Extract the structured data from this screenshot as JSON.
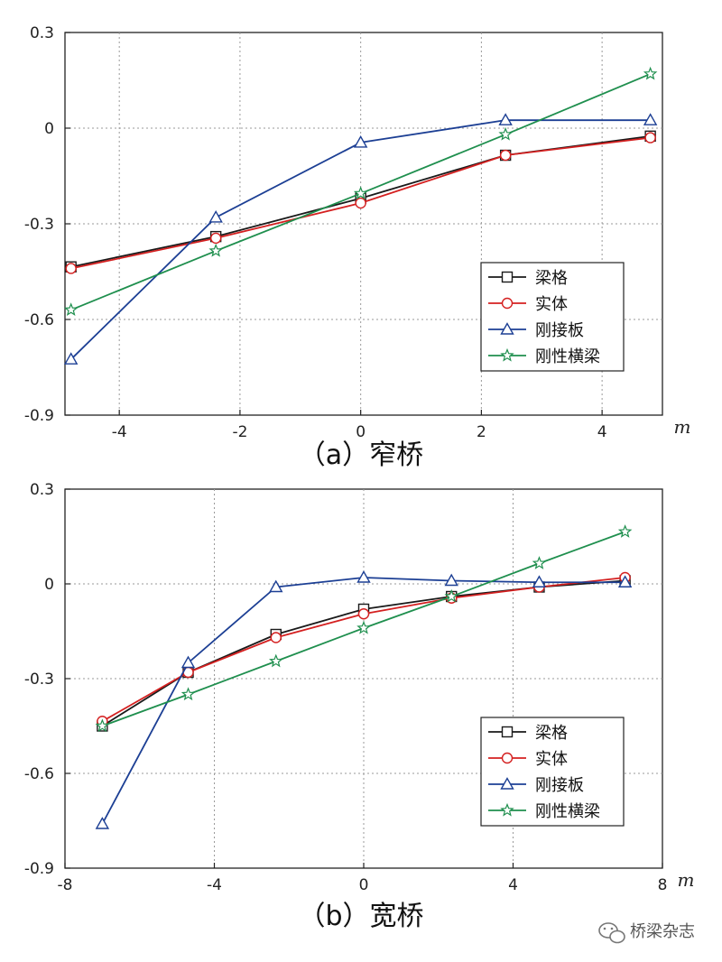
{
  "chart_data": [
    {
      "type": "line",
      "title": "（a）窄桥",
      "xlabel": "m",
      "ylabel": "",
      "xlim": [
        -4.9,
        5.0
      ],
      "ylim": [
        -0.9,
        0.3
      ],
      "xticks": [
        -4,
        -2,
        0,
        2,
        4
      ],
      "yticks": [
        0.3,
        0,
        -0.3,
        -0.6,
        -0.9
      ],
      "xtick_labels": [
        "-4",
        "-2",
        "0",
        "2",
        "4"
      ],
      "ytick_labels": [
        "0.3",
        "0",
        "-0.3",
        "-0.6",
        "-0.9"
      ],
      "grid": true,
      "legend_position": "lower-right",
      "series": [
        {
          "name": "梁格",
          "color": "#1a1a1a",
          "marker": "square",
          "x": [
            -4.8,
            -2.4,
            0,
            2.4,
            4.8
          ],
          "y": [
            -0.435,
            -0.34,
            -0.22,
            -0.085,
            -0.025
          ]
        },
        {
          "name": "实体",
          "color": "#d42020",
          "marker": "circle",
          "x": [
            -4.8,
            -2.4,
            0,
            2.4,
            4.8
          ],
          "y": [
            -0.44,
            -0.345,
            -0.235,
            -0.085,
            -0.03
          ]
        },
        {
          "name": "刚接板",
          "color": "#1c3f94",
          "marker": "triangle",
          "x": [
            -4.8,
            -2.4,
            0,
            2.4,
            4.8
          ],
          "y": [
            -0.725,
            -0.28,
            -0.045,
            0.025,
            0.025
          ]
        },
        {
          "name": "刚性横梁",
          "color": "#1f8f4e",
          "marker": "star",
          "x": [
            -4.8,
            -2.4,
            0,
            2.4,
            4.8
          ],
          "y": [
            -0.57,
            -0.385,
            -0.205,
            -0.02,
            0.17
          ]
        }
      ]
    },
    {
      "type": "line",
      "title": "（b）宽桥",
      "xlabel": "m",
      "ylabel": "",
      "xlim": [
        -8,
        8
      ],
      "ylim": [
        -0.9,
        0.3
      ],
      "xticks": [
        -8,
        -4,
        0,
        4,
        8
      ],
      "yticks": [
        0.3,
        0,
        -0.3,
        -0.6,
        -0.9
      ],
      "xtick_labels": [
        "-8",
        "-4",
        "0",
        "4",
        "8"
      ],
      "ytick_labels": [
        "0.3",
        "0",
        "-0.3",
        "-0.6",
        "-0.9"
      ],
      "grid": true,
      "legend_position": "lower-right",
      "series": [
        {
          "name": "梁格",
          "color": "#1a1a1a",
          "marker": "square",
          "x": [
            -7,
            -4.7,
            -2.35,
            0,
            2.35,
            4.7,
            7
          ],
          "y": [
            -0.45,
            -0.28,
            -0.16,
            -0.08,
            -0.04,
            -0.01,
            0.01
          ]
        },
        {
          "name": "实体",
          "color": "#d42020",
          "marker": "circle",
          "x": [
            -7,
            -4.7,
            -2.35,
            0,
            2.35,
            4.7,
            7
          ],
          "y": [
            -0.435,
            -0.28,
            -0.17,
            -0.095,
            -0.045,
            -0.01,
            0.02
          ]
        },
        {
          "name": "刚接板",
          "color": "#1c3f94",
          "marker": "triangle",
          "x": [
            -7,
            -4.7,
            -2.35,
            0,
            2.35,
            4.7,
            7
          ],
          "y": [
            -0.76,
            -0.25,
            -0.01,
            0.02,
            0.01,
            0.005,
            0.005
          ]
        },
        {
          "name": "刚性横梁",
          "color": "#1f8f4e",
          "marker": "star",
          "x": [
            -7,
            -4.7,
            -2.35,
            0,
            2.35,
            4.7,
            7
          ],
          "y": [
            -0.45,
            -0.35,
            -0.245,
            -0.14,
            -0.04,
            0.065,
            0.165
          ]
        }
      ]
    }
  ],
  "watermark": {
    "text": "桥梁杂志",
    "icon": "wechat-icon"
  }
}
